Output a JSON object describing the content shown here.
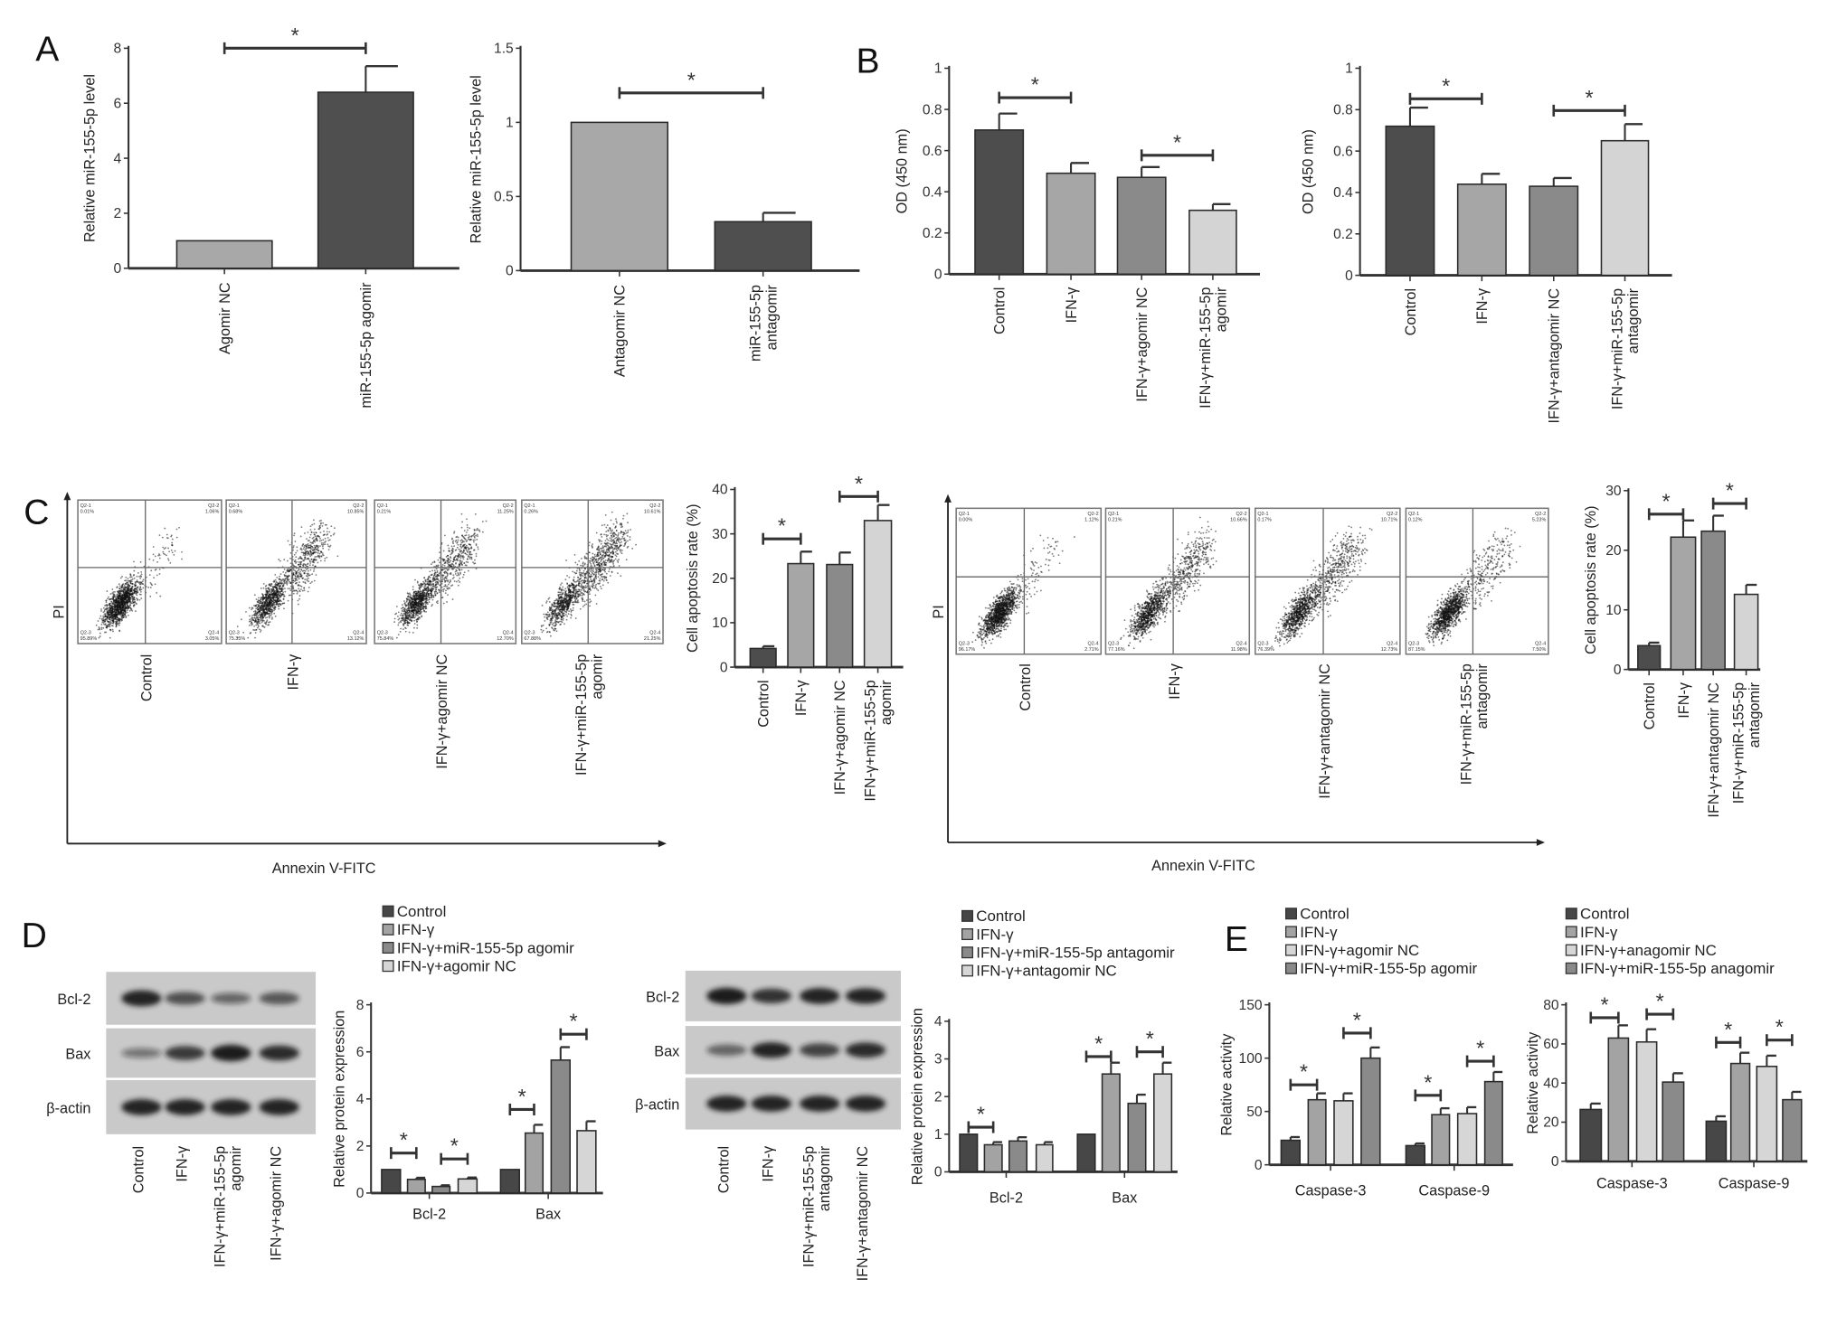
{
  "panels": {
    "A": "A",
    "B": "B",
    "C": "C",
    "D": "D",
    "E": "E"
  },
  "colors": {
    "dark": "#4a4a4a",
    "medium": "#a3a3a3",
    "medium_dark": "#8a8a8a",
    "light": "#d6d6d6",
    "axis": "#333333"
  },
  "chart_data": [
    {
      "type": "bar",
      "panel": "A",
      "ylabel": "Relative miR-155-5p level",
      "ylim": [
        0,
        8
      ],
      "yticks": [
        0,
        2,
        4,
        6,
        8
      ],
      "ytick_labels": [
        "0",
        "2",
        "4",
        "6",
        "8"
      ],
      "categories": [
        [
          "Agomir NC"
        ],
        [
          "miR-155-5p agomir"
        ]
      ],
      "values": [
        1.0,
        6.4
      ],
      "error_upper": [
        null,
        7.35
      ],
      "colors": [
        "#a8a8a8",
        "#4f4f4f"
      ],
      "significance": [
        {
          "between": [
            0,
            1
          ],
          "label": "*"
        }
      ]
    },
    {
      "type": "bar",
      "panel": "A",
      "ylabel": "Relative miR-155-5p level",
      "ylim": [
        0,
        1.5
      ],
      "yticks": [
        0,
        0.5,
        1,
        1.5
      ],
      "ytick_labels": [
        "0",
        "0.5",
        "1",
        "1.5"
      ],
      "categories": [
        [
          "Antagomir NC"
        ],
        [
          "miR-155-5p",
          "antagomir"
        ]
      ],
      "values": [
        1.0,
        0.33
      ],
      "error_upper": [
        null,
        0.39
      ],
      "colors": [
        "#a8a8a8",
        "#4f4f4f"
      ],
      "significance": [
        {
          "between": [
            0,
            1
          ],
          "label": "*"
        }
      ]
    },
    {
      "type": "bar",
      "panel": "B",
      "ylabel": "OD (450 nm)",
      "ylim": [
        0,
        1
      ],
      "yticks": [
        0,
        0.2,
        0.4,
        0.6,
        0.8,
        1
      ],
      "ytick_labels": [
        "0",
        "0.2",
        "0.4",
        "0.6",
        "0.8",
        "1"
      ],
      "categories": [
        [
          "Control"
        ],
        [
          "IFN-γ"
        ],
        [
          "IFN-γ+agomir NC"
        ],
        [
          "IFN-γ+miR-155-5p",
          "agomir"
        ]
      ],
      "values": [
        0.7,
        0.49,
        0.47,
        0.31
      ],
      "error_upper": [
        0.78,
        0.54,
        0.52,
        0.34
      ],
      "colors": [
        "#4d4d4d",
        "#a6a6a6",
        "#8a8a8a",
        "#d4d4d4"
      ],
      "significance": [
        {
          "between": [
            0,
            1
          ],
          "label": "*"
        },
        {
          "between": [
            2,
            3
          ],
          "label": "*"
        }
      ]
    },
    {
      "type": "bar",
      "panel": "B",
      "ylabel": "OD (450 nm)",
      "ylim": [
        0,
        1
      ],
      "yticks": [
        0,
        0.2,
        0.4,
        0.6,
        0.8,
        1
      ],
      "ytick_labels": [
        "0",
        "0.2",
        "0.4",
        "0.6",
        "0.8",
        "1"
      ],
      "categories": [
        [
          "Control"
        ],
        [
          "IFN-γ"
        ],
        [
          "IFN-γ+antagomir NC"
        ],
        [
          "IFN-γ+miR-155-5p",
          "antagomir"
        ]
      ],
      "values": [
        0.72,
        0.44,
        0.43,
        0.65
      ],
      "error_upper": [
        0.81,
        0.49,
        0.47,
        0.73
      ],
      "colors": [
        "#4d4d4d",
        "#a6a6a6",
        "#8a8a8a",
        "#d4d4d4"
      ],
      "significance": [
        {
          "between": [
            0,
            1
          ],
          "label": "*"
        },
        {
          "between": [
            2,
            3
          ],
          "label": "*"
        }
      ]
    },
    {
      "type": "bar",
      "panel": "C",
      "ylabel": "Cell apoptosis rate (%)",
      "ylim": [
        0,
        40
      ],
      "yticks": [
        0,
        10,
        20,
        30,
        40
      ],
      "ytick_labels": [
        "0",
        "10",
        "20",
        "30",
        "40"
      ],
      "categories": [
        [
          "Control"
        ],
        [
          "IFN-γ"
        ],
        [
          "IFN-γ+agomir NC"
        ],
        [
          "IFN-γ+miR-155-5p",
          "agomir"
        ]
      ],
      "values": [
        4.2,
        23.3,
        23.1,
        33.0
      ],
      "error_upper": [
        4.7,
        26.0,
        25.8,
        36.5
      ],
      "colors": [
        "#4d4d4d",
        "#a6a6a6",
        "#8a8a8a",
        "#d4d4d4"
      ],
      "significance": [
        {
          "between": [
            0,
            1
          ],
          "label": "*"
        },
        {
          "between": [
            2,
            3
          ],
          "label": "*"
        }
      ]
    },
    {
      "type": "bar",
      "panel": "C",
      "ylabel": "Cell apoptosis rate (%)",
      "ylim": [
        0,
        30
      ],
      "yticks": [
        0,
        10,
        20,
        30
      ],
      "ytick_labels": [
        "0",
        "10",
        "20",
        "30"
      ],
      "categories": [
        [
          "Control"
        ],
        [
          "IFN-γ"
        ],
        [
          "IFN-γ+antagomir NC"
        ],
        [
          "IFN-γ+miR-155-5p",
          "antagomir"
        ]
      ],
      "values": [
        4.0,
        22.2,
        23.2,
        12.6
      ],
      "error_upper": [
        4.5,
        25.0,
        25.8,
        14.2
      ],
      "colors": [
        "#4d4d4d",
        "#a6a6a6",
        "#8a8a8a",
        "#d4d4d4"
      ],
      "significance": [
        {
          "between": [
            0,
            1
          ],
          "label": "*"
        },
        {
          "between": [
            2,
            3
          ],
          "label": "*"
        }
      ]
    },
    {
      "type": "bar",
      "grouped": true,
      "panel": "D",
      "ylabel": "Relative protein expression",
      "ylim": [
        0,
        8
      ],
      "yticks": [
        0,
        2,
        4,
        6,
        8
      ],
      "ytick_labels": [
        "0",
        "2",
        "4",
        "6",
        "8"
      ],
      "categories": [
        "Bcl-2",
        "Bax"
      ],
      "legend_position": "top",
      "series": [
        {
          "name": "Control",
          "values": [
            1.0,
            1.0
          ],
          "error_upper": [
            null,
            null
          ],
          "color": "#474747"
        },
        {
          "name": "IFN-γ",
          "values": [
            0.58,
            2.55
          ],
          "error_upper": [
            0.65,
            2.9
          ],
          "color": "#a3a3a3"
        },
        {
          "name": "IFN-γ+miR-155-5p agomir",
          "values": [
            0.28,
            5.65
          ],
          "error_upper": [
            0.33,
            6.2
          ],
          "color": "#8a8a8a"
        },
        {
          "name": "IFN-γ+agomir NC",
          "values": [
            0.6,
            2.65
          ],
          "error_upper": [
            0.66,
            3.05
          ],
          "color": "#d6d6d6"
        }
      ],
      "significance": [
        {
          "group": 0,
          "between": [
            0,
            1
          ],
          "label": "*"
        },
        {
          "group": 0,
          "between": [
            2,
            3
          ],
          "label": "*"
        },
        {
          "group": 1,
          "between": [
            0,
            1
          ],
          "label": "*"
        },
        {
          "group": 1,
          "between": [
            2,
            3
          ],
          "label": "*"
        }
      ]
    },
    {
      "type": "bar",
      "grouped": true,
      "panel": "D",
      "ylabel": "Relative protein expression",
      "ylim": [
        0,
        4
      ],
      "yticks": [
        0,
        1,
        2,
        3,
        4
      ],
      "ytick_labels": [
        "0",
        "1",
        "2",
        "3",
        "4"
      ],
      "categories": [
        "Bcl-2",
        "Bax"
      ],
      "legend_position": "top",
      "series": [
        {
          "name": "Control",
          "values": [
            1.0,
            1.0
          ],
          "error_upper": [
            null,
            null
          ],
          "color": "#474747"
        },
        {
          "name": "IFN-γ",
          "values": [
            0.72,
            2.6
          ],
          "error_upper": [
            0.79,
            2.9
          ],
          "color": "#a3a3a3"
        },
        {
          "name": "IFN-γ+miR-155-5p antagomir",
          "values": [
            0.82,
            1.82
          ],
          "error_upper": [
            0.92,
            2.05
          ],
          "color": "#8a8a8a"
        },
        {
          "name": "IFN-γ+antagomir NC",
          "values": [
            0.72,
            2.6
          ],
          "error_upper": [
            0.79,
            2.9
          ],
          "color": "#d6d6d6"
        }
      ],
      "significance": [
        {
          "group": 0,
          "between": [
            0,
            1
          ],
          "label": "*"
        },
        {
          "group": 1,
          "between": [
            0,
            1
          ],
          "label": "*"
        },
        {
          "group": 1,
          "between": [
            2,
            3
          ],
          "label": "*"
        }
      ]
    },
    {
      "type": "bar",
      "grouped": true,
      "panel": "E",
      "ylabel": "Relative activity",
      "ylim": [
        0,
        150
      ],
      "yticks": [
        0,
        50,
        100,
        150
      ],
      "ytick_labels": [
        "0",
        "50",
        "100",
        "150"
      ],
      "categories": [
        "Caspase-3",
        "Caspase-9"
      ],
      "legend_position": "top",
      "series": [
        {
          "name": "Control",
          "values": [
            23,
            18
          ],
          "error_upper": [
            26,
            20
          ],
          "color": "#474747"
        },
        {
          "name": "IFN-γ",
          "values": [
            61,
            47
          ],
          "error_upper": [
            67,
            53
          ],
          "color": "#a3a3a3"
        },
        {
          "name": "IFN-γ+agomir NC",
          "values": [
            60,
            48
          ],
          "error_upper": [
            67,
            54
          ],
          "color": "#d6d6d6"
        },
        {
          "name": "IFN-γ+miR-155-5p agomir",
          "values": [
            100,
            78
          ],
          "error_upper": [
            110,
            87
          ],
          "color": "#8a8a8a"
        }
      ],
      "significance": [
        {
          "group": 0,
          "between": [
            0,
            1
          ],
          "label": "*"
        },
        {
          "group": 0,
          "between": [
            2,
            3
          ],
          "label": "*"
        },
        {
          "group": 1,
          "between": [
            0,
            1
          ],
          "label": "*"
        },
        {
          "group": 1,
          "between": [
            2,
            3
          ],
          "label": "*"
        }
      ]
    },
    {
      "type": "bar",
      "grouped": true,
      "panel": "E",
      "ylabel": "Relative activity",
      "ylim": [
        0,
        80
      ],
      "yticks": [
        0,
        20,
        40,
        60,
        80
      ],
      "ytick_labels": [
        "0",
        "20",
        "40",
        "60",
        "80"
      ],
      "categories": [
        "Caspase-3",
        "Caspase-9"
      ],
      "legend_position": "top",
      "series": [
        {
          "name": "Control",
          "values": [
            26.5,
            20.5
          ],
          "error_upper": [
            29.5,
            23
          ],
          "color": "#474747"
        },
        {
          "name": "IFN-γ",
          "values": [
            63,
            50
          ],
          "error_upper": [
            69.5,
            55.5
          ],
          "color": "#a3a3a3"
        },
        {
          "name": "IFN-γ+anagomir NC",
          "values": [
            61,
            48.5
          ],
          "error_upper": [
            67.5,
            54
          ],
          "color": "#d6d6d6"
        },
        {
          "name": "IFN-γ+miR-155-5p anagomir",
          "values": [
            40.5,
            31.5
          ],
          "error_upper": [
            45,
            35.5
          ],
          "color": "#8a8a8a"
        }
      ],
      "significance": [
        {
          "group": 0,
          "between": [
            0,
            1
          ],
          "label": "*"
        },
        {
          "group": 0,
          "between": [
            2,
            3
          ],
          "label": "*"
        },
        {
          "group": 1,
          "between": [
            0,
            1
          ],
          "label": "*"
        },
        {
          "group": 1,
          "between": [
            2,
            3
          ],
          "label": "*"
        }
      ]
    }
  ],
  "flow_cytometry": [
    {
      "x_axis_label": "Annexin V-FITC",
      "y_axis_label": "PI",
      "samples": [
        {
          "label": [
            "Control"
          ],
          "quadrants": [
            [
              "Q2-1",
              "0.01%"
            ],
            [
              "Q2-2",
              "1.06%"
            ],
            [
              "Q2-3",
              "95.89%"
            ],
            [
              "Q2-4",
              "3.05%"
            ]
          ]
        },
        {
          "label": [
            "IFN-γ"
          ],
          "quadrants": [
            [
              "Q2-1",
              "0.68%"
            ],
            [
              "Q2-2",
              "10.85%"
            ],
            [
              "Q2-3",
              "75.35%"
            ],
            [
              "Q2-4",
              "13.12%"
            ]
          ]
        },
        {
          "label": [
            "IFN-γ+agomir NC"
          ],
          "quadrants": [
            [
              "Q2-1",
              "0.21%"
            ],
            [
              "Q2-2",
              "11.25%"
            ],
            [
              "Q2-3",
              "75.84%"
            ],
            [
              "Q2-4",
              "12.70%"
            ]
          ]
        },
        {
          "label": [
            "IFN-γ+miR-155-5p",
            "agomir"
          ],
          "quadrants": [
            [
              "Q2-1",
              "0.26%"
            ],
            [
              "Q2-2",
              "10.61%"
            ],
            [
              "Q2-3",
              "67.88%"
            ],
            [
              "Q2-4",
              "21.25%"
            ]
          ]
        }
      ]
    },
    {
      "x_axis_label": "Annexin V-FITC",
      "y_axis_label": "PI",
      "samples": [
        {
          "label": [
            "Control"
          ],
          "quadrants": [
            [
              "Q2-1",
              "0.00%"
            ],
            [
              "Q2-2",
              "1.12%"
            ],
            [
              "Q2-3",
              "96.17%"
            ],
            [
              "Q2-4",
              "2.71%"
            ]
          ]
        },
        {
          "label": [
            "IFN-γ"
          ],
          "quadrants": [
            [
              "Q2-1",
              "0.21%"
            ],
            [
              "Q2-2",
              "10.66%"
            ],
            [
              "Q2-3",
              "77.16%"
            ],
            [
              "Q2-4",
              "11.98%"
            ]
          ]
        },
        {
          "label": [
            "IFN-γ+antagomir NC"
          ],
          "quadrants": [
            [
              "Q2-1",
              "0.17%"
            ],
            [
              "Q2-2",
              "10.71%"
            ],
            [
              "Q2-3",
              "76.39%"
            ],
            [
              "Q2-4",
              "12.73%"
            ]
          ]
        },
        {
          "label": [
            "IFN-γ+miR-155-5p",
            "antagomir"
          ],
          "quadrants": [
            [
              "Q2-1",
              "0.12%"
            ],
            [
              "Q2-2",
              "5.23%"
            ],
            [
              "Q2-3",
              "87.15%"
            ],
            [
              "Q2-4",
              "7.50%"
            ]
          ]
        }
      ]
    }
  ],
  "western_blots": [
    {
      "rows": [
        "Bcl-2",
        "Bax",
        "β-actin"
      ],
      "lanes": [
        [
          "Control"
        ],
        [
          "IFN-γ"
        ],
        [
          "IFN-γ+miR-155-5p",
          "agomir"
        ],
        [
          "IFN-γ+agomir NC"
        ]
      ],
      "band_intensity": [
        [
          0.95,
          0.6,
          0.4,
          0.55
        ],
        [
          0.3,
          0.75,
          1.0,
          0.85
        ],
        [
          0.95,
          0.95,
          0.95,
          0.95
        ]
      ]
    },
    {
      "rows": [
        "Bcl-2",
        "Bax",
        "β-actin"
      ],
      "lanes": [
        [
          "Control"
        ],
        [
          "IFN-γ"
        ],
        [
          "IFN-γ+miR-155-5p",
          "antagomir"
        ],
        [
          "IFN-γ+antagomir NC"
        ]
      ],
      "band_intensity": [
        [
          1.0,
          0.8,
          0.95,
          0.9
        ],
        [
          0.45,
          0.9,
          0.7,
          0.85
        ],
        [
          0.95,
          0.95,
          0.95,
          0.95
        ]
      ]
    }
  ]
}
